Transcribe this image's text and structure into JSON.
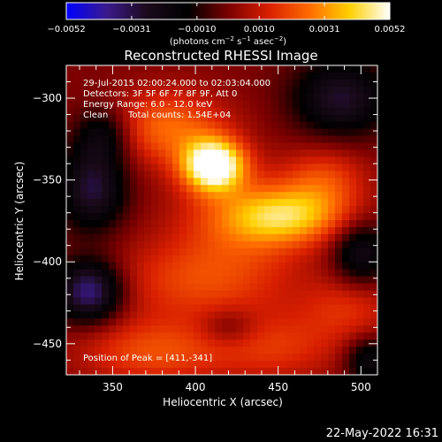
{
  "chart_data": {
    "type": "heatmap",
    "title": "Reconstructed RHESSI Image",
    "xlabel": "Heliocentric X (arcsec)",
    "ylabel": "Heliocentric Y (arcsec)",
    "xlim": [
      322,
      510
    ],
    "ylim": [
      -469,
      -280
    ],
    "x_ticks": [
      350,
      400,
      450,
      500
    ],
    "y_ticks": [
      -300,
      -350,
      -400,
      -450
    ],
    "colorbar": {
      "range": [
        -0.0052,
        0.0052
      ],
      "tick_values": [
        -0.0052,
        -0.0031,
        -0.001,
        0.001,
        0.0031,
        0.0052
      ],
      "tick_labels": [
        "−0.0052",
        "−0.0031",
        "−0.0010",
        "0.0010",
        "0.0031",
        "0.0052"
      ],
      "units_text": "(photons cm",
      "units_exp1": "−2",
      "units_mid": " s",
      "units_exp2": "−1",
      "units_end": " asec",
      "units_exp3": "−2",
      "units_close": ")",
      "colormap": [
        "#0000ff",
        "#3a1a8c",
        "#1a0a1a",
        "#000000",
        "#7a0000",
        "#d81f00",
        "#ff6a00",
        "#ffd000",
        "#ffffff"
      ]
    },
    "annotations": [
      "29-Jul-2015 02:00:24.000 to 02:03:04.000",
      "Detectors: 3F 5F 6F 7F 8F 9F, Att 0",
      "Energy Range: 6.0 - 12.0 keV",
      "Clean",
      "Total counts: 1.54E+04"
    ],
    "peak_label": "Position of Peak = [411,-341]",
    "peak": {
      "x": 411,
      "y": -341
    },
    "sources": [
      {
        "x": 411,
        "y": -341,
        "sx": 13,
        "sy": 11,
        "amp": 0.006
      },
      {
        "x": 383,
        "y": -318,
        "sx": 25,
        "sy": 16,
        "amp": 0.0025
      },
      {
        "x": 455,
        "y": -372,
        "sx": 26,
        "sy": 12,
        "amp": 0.0032
      },
      {
        "x": 428,
        "y": -375,
        "sx": 30,
        "sy": 22,
        "amp": 0.0016
      },
      {
        "x": 402,
        "y": -412,
        "sx": 38,
        "sy": 18,
        "amp": 0.0018
      },
      {
        "x": 375,
        "y": -455,
        "sx": 32,
        "sy": 14,
        "amp": 0.002
      },
      {
        "x": 478,
        "y": -350,
        "sx": 18,
        "sy": 14,
        "amp": 0.0018
      },
      {
        "x": 493,
        "y": -428,
        "sx": 20,
        "sy": 14,
        "amp": 0.0014
      },
      {
        "x": 450,
        "y": -452,
        "sx": 28,
        "sy": 15,
        "amp": 0.0015
      },
      {
        "x": 336,
        "y": -418,
        "sx": 14,
        "sy": 13,
        "amp": -0.004
      },
      {
        "x": 338,
        "y": -355,
        "sx": 14,
        "sy": 18,
        "amp": -0.003
      },
      {
        "x": 345,
        "y": -322,
        "sx": 12,
        "sy": 12,
        "amp": -0.002
      },
      {
        "x": 488,
        "y": -300,
        "sx": 20,
        "sy": 16,
        "amp": -0.0028
      },
      {
        "x": 500,
        "y": -395,
        "sx": 12,
        "sy": 14,
        "amp": -0.0024
      },
      {
        "x": 505,
        "y": -460,
        "sx": 10,
        "sy": 10,
        "amp": -0.0022
      },
      {
        "x": 420,
        "y": -440,
        "sx": 12,
        "sy": 8,
        "amp": -0.0012
      }
    ],
    "grid": false
  },
  "footer": {
    "timestamp": "22-May-2022 16:31"
  }
}
